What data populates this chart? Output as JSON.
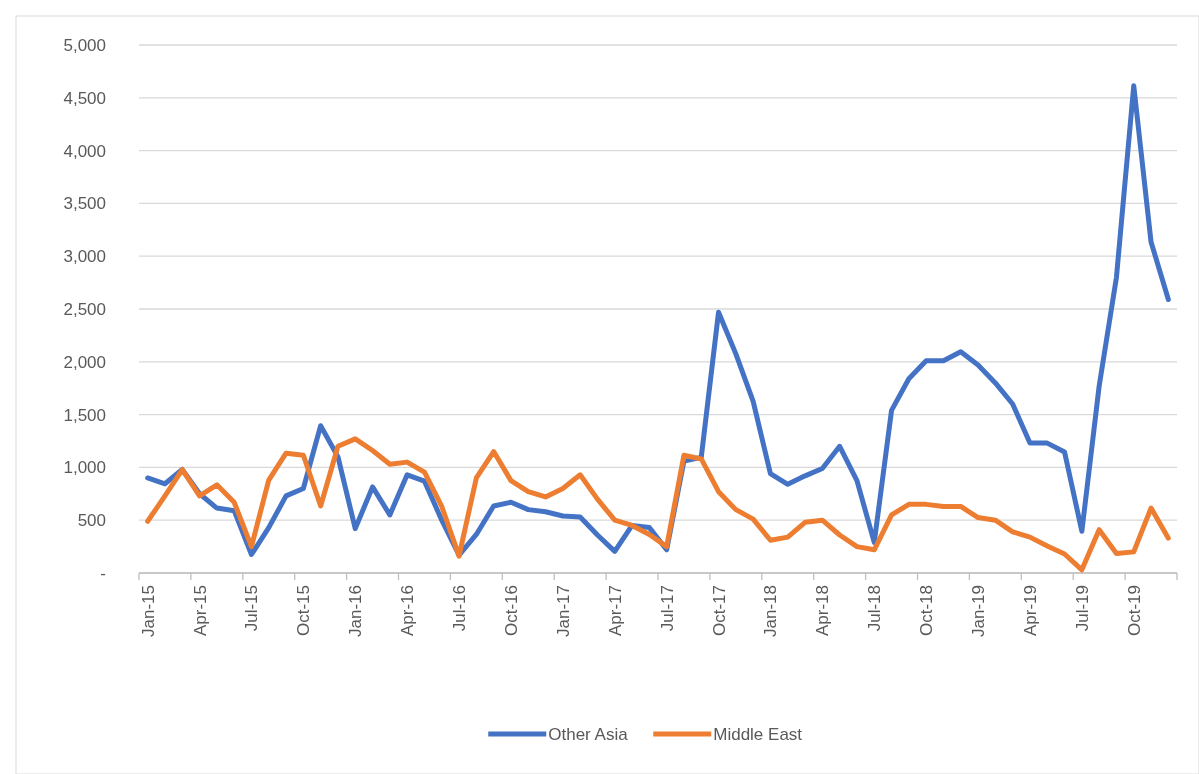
{
  "chart_data": {
    "type": "line",
    "categories": [
      "Jan-15",
      null,
      null,
      "Apr-15",
      null,
      null,
      "Jul-15",
      null,
      null,
      "Oct-15",
      null,
      null,
      "Jan-16",
      null,
      null,
      "Apr-16",
      null,
      null,
      "Jul-16",
      null,
      null,
      "Oct-16",
      null,
      null,
      "Jan-17",
      null,
      null,
      "Apr-17",
      null,
      null,
      "Jul-17",
      null,
      null,
      "Oct-17",
      null,
      null,
      "Jan-18",
      null,
      null,
      "Apr-18",
      null,
      null,
      "Jul-18",
      null,
      null,
      "Oct-18",
      null,
      null,
      "Jan-19",
      null,
      null,
      "Apr-19",
      null,
      null,
      "Jul-19",
      null,
      null,
      "Oct-19",
      null,
      null
    ],
    "series": [
      {
        "name": "Other Asia",
        "color": "#4472c4",
        "values": [
          900,
          845,
          980,
          750,
          615,
          590,
          175,
          430,
          730,
          800,
          1395,
          1100,
          420,
          815,
          550,
          930,
          870,
          500,
          170,
          365,
          635,
          670,
          600,
          580,
          540,
          530,
          360,
          205,
          450,
          430,
          220,
          1060,
          1095,
          2470,
          2075,
          1625,
          940,
          840,
          920,
          990,
          1200,
          875,
          290,
          1540,
          1840,
          2010,
          2010,
          2095,
          1970,
          1800,
          1600,
          1230,
          1230,
          1145,
          395,
          1770,
          2800,
          4615,
          3135,
          2590
        ]
      },
      {
        "name": "Middle East",
        "color": "#ed7d31",
        "values": [
          490,
          730,
          980,
          730,
          835,
          670,
          250,
          880,
          1135,
          1115,
          635,
          1200,
          1270,
          1160,
          1030,
          1050,
          955,
          630,
          160,
          900,
          1150,
          875,
          770,
          720,
          800,
          930,
          700,
          500,
          450,
          365,
          250,
          1115,
          1080,
          770,
          600,
          510,
          310,
          340,
          480,
          500,
          360,
          250,
          220,
          550,
          650,
          650,
          630,
          630,
          525,
          500,
          390,
          340,
          255,
          180,
          30,
          410,
          185,
          200,
          615,
          330
        ]
      }
    ],
    "ylim": [
      0,
      5000
    ],
    "yticks": [
      {
        "value": 0,
        "label": "-"
      },
      500,
      {
        "value": 1000,
        "label": "1,000"
      },
      {
        "value": 1500,
        "label": "1,500"
      },
      {
        "value": 2000,
        "label": "2,000"
      },
      {
        "value": 2500,
        "label": "2,500"
      },
      {
        "value": 3000,
        "label": "3,000"
      },
      {
        "value": 3500,
        "label": "3,500"
      },
      {
        "value": 4000,
        "label": "4,000"
      },
      {
        "value": 4500,
        "label": "4,500"
      },
      {
        "value": 5000,
        "label": "5,000"
      }
    ],
    "grid": "y",
    "legend": "bottom",
    "marker": "none",
    "line_style": "solid"
  }
}
